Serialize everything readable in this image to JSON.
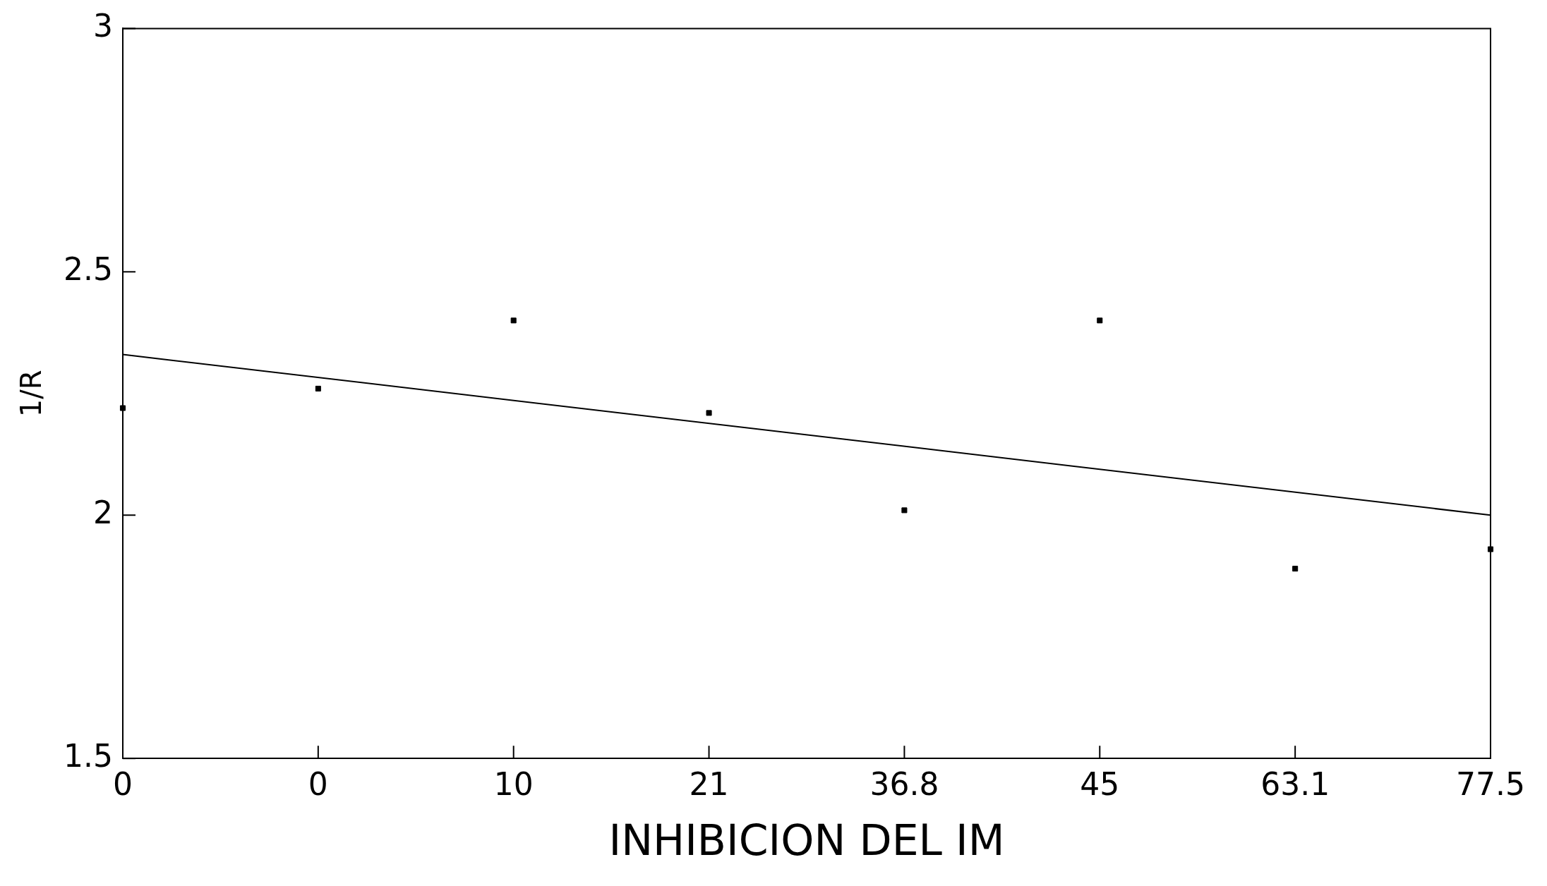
{
  "chart_data": {
    "type": "scatter",
    "xlabel": "INHIBICION DEL IM",
    "ylabel": "1/R",
    "categories": [
      "0",
      "0",
      "10",
      "21",
      "36.8",
      "45",
      "63.1",
      "77.5"
    ],
    "ylim": [
      1.5,
      3
    ],
    "yticks": [
      1.5,
      2,
      2.5,
      3
    ],
    "grid": false,
    "legend": false,
    "marker": "square",
    "series": [
      {
        "type": "scatter",
        "color": "#000000",
        "values": [
          2.22,
          2.26,
          2.4,
          2.21,
          2.01,
          2.4,
          1.89,
          1.93
        ]
      },
      {
        "type": "line",
        "color": "#000000",
        "marker": "none",
        "line_style": "solid",
        "values": [
          2.33,
          null,
          null,
          null,
          null,
          null,
          null,
          2.0
        ]
      }
    ]
  }
}
